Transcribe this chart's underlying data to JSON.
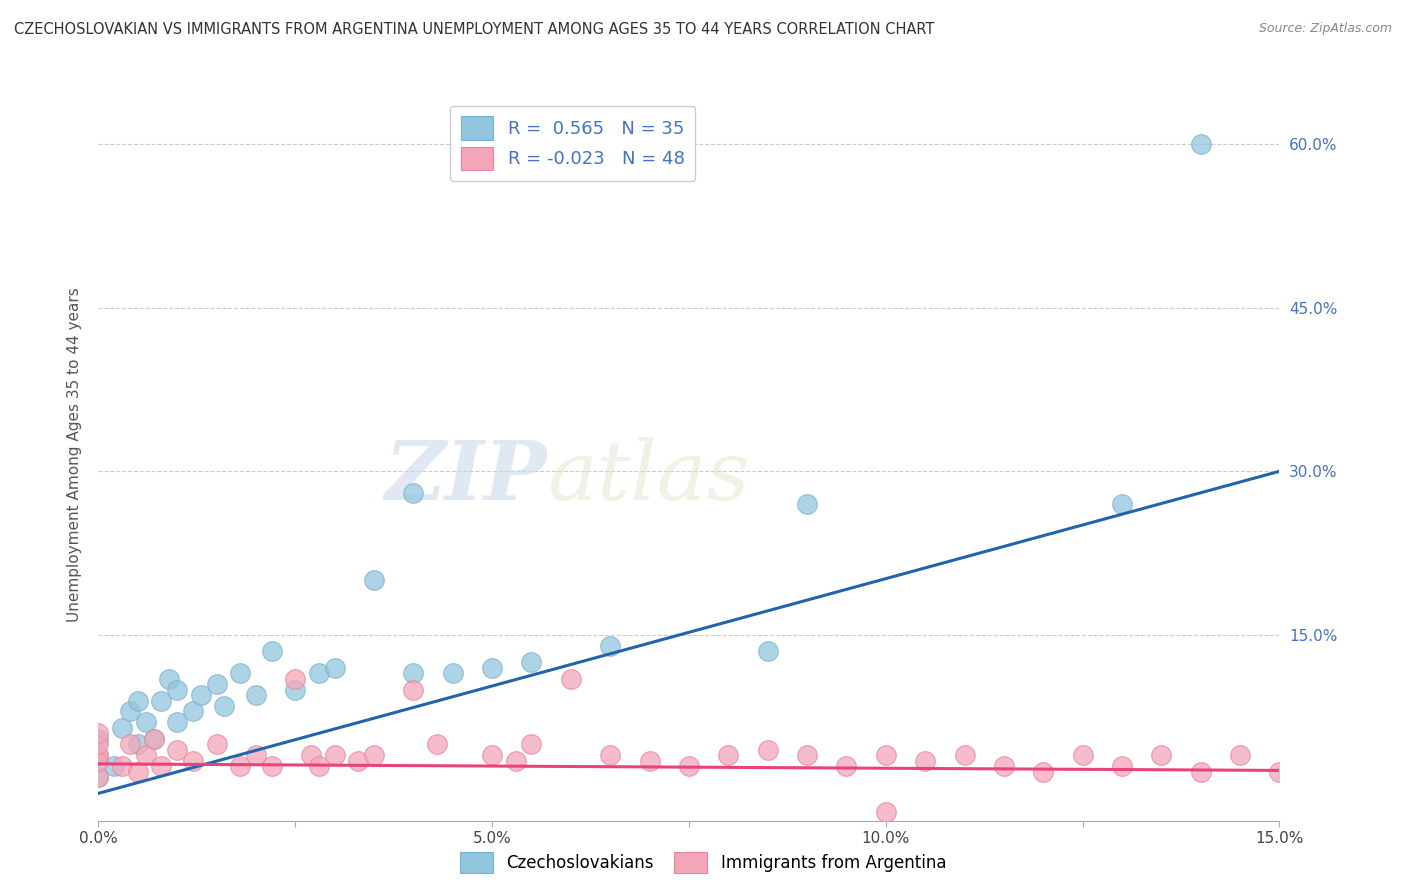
{
  "title": "CZECHOSLOVAKIAN VS IMMIGRANTS FROM ARGENTINA UNEMPLOYMENT AMONG AGES 35 TO 44 YEARS CORRELATION CHART",
  "source": "Source: ZipAtlas.com",
  "ylabel": "Unemployment Among Ages 35 to 44 years",
  "xlim": [
    0.0,
    0.15
  ],
  "ylim": [
    -0.02,
    0.65
  ],
  "x_tick_labels": [
    "0.0%",
    "",
    "5.0%",
    "",
    "10.0%",
    "",
    "15.0%"
  ],
  "x_tick_vals": [
    0.0,
    0.025,
    0.05,
    0.075,
    0.1,
    0.125,
    0.15
  ],
  "y_tick_labels": [
    "15.0%",
    "30.0%",
    "45.0%",
    "60.0%"
  ],
  "y_tick_vals": [
    0.15,
    0.3,
    0.45,
    0.6
  ],
  "legend_labels": [
    "Czechoslovakians",
    "Immigrants from Argentina"
  ],
  "R_czech": 0.565,
  "N_czech": 35,
  "R_arg": -0.023,
  "N_arg": 48,
  "watermark_zip": "ZIP",
  "watermark_atlas": "atlas",
  "blue_color": "#92c5de",
  "pink_color": "#f4a6b8",
  "blue_scatter_edge": "#7ab0d0",
  "pink_scatter_edge": "#e8849a",
  "blue_line_color": "#2166ac",
  "pink_line_color": "#e8437a",
  "czech_line_x0": 0.0,
  "czech_line_y0": 0.005,
  "czech_line_x1": 0.15,
  "czech_line_y1": 0.3,
  "arg_line_x0": 0.0,
  "arg_line_y0": 0.032,
  "arg_line_x1": 0.15,
  "arg_line_y1": 0.026,
  "czech_scatter_x": [
    0.0,
    0.0,
    0.0,
    0.002,
    0.003,
    0.004,
    0.005,
    0.005,
    0.006,
    0.007,
    0.008,
    0.009,
    0.01,
    0.01,
    0.012,
    0.013,
    0.015,
    0.016,
    0.018,
    0.02,
    0.022,
    0.025,
    0.028,
    0.03,
    0.035,
    0.04,
    0.04,
    0.045,
    0.05,
    0.055,
    0.065,
    0.085,
    0.09,
    0.13,
    0.14
  ],
  "czech_scatter_y": [
    0.02,
    0.04,
    0.055,
    0.03,
    0.065,
    0.08,
    0.05,
    0.09,
    0.07,
    0.055,
    0.09,
    0.11,
    0.07,
    0.1,
    0.08,
    0.095,
    0.105,
    0.085,
    0.115,
    0.095,
    0.135,
    0.1,
    0.115,
    0.12,
    0.2,
    0.28,
    0.115,
    0.115,
    0.12,
    0.125,
    0.14,
    0.135,
    0.27,
    0.27,
    0.6
  ],
  "arg_scatter_x": [
    0.0,
    0.0,
    0.0,
    0.0,
    0.0,
    0.003,
    0.004,
    0.005,
    0.006,
    0.007,
    0.008,
    0.01,
    0.012,
    0.015,
    0.018,
    0.02,
    0.022,
    0.025,
    0.027,
    0.028,
    0.03,
    0.033,
    0.035,
    0.04,
    0.043,
    0.05,
    0.053,
    0.055,
    0.06,
    0.065,
    0.07,
    0.075,
    0.08,
    0.085,
    0.09,
    0.095,
    0.1,
    0.105,
    0.11,
    0.115,
    0.12,
    0.125,
    0.13,
    0.135,
    0.14,
    0.145,
    0.15,
    0.1
  ],
  "arg_scatter_y": [
    0.02,
    0.035,
    0.04,
    0.05,
    0.06,
    0.03,
    0.05,
    0.025,
    0.04,
    0.055,
    0.03,
    0.045,
    0.035,
    0.05,
    0.03,
    0.04,
    0.03,
    0.11,
    0.04,
    0.03,
    0.04,
    0.035,
    0.04,
    0.1,
    0.05,
    0.04,
    0.035,
    0.05,
    0.11,
    0.04,
    0.035,
    0.03,
    0.04,
    0.045,
    0.04,
    0.03,
    0.04,
    0.035,
    0.04,
    0.03,
    0.025,
    0.04,
    0.03,
    0.04,
    0.025,
    0.04,
    0.025,
    -0.012
  ]
}
